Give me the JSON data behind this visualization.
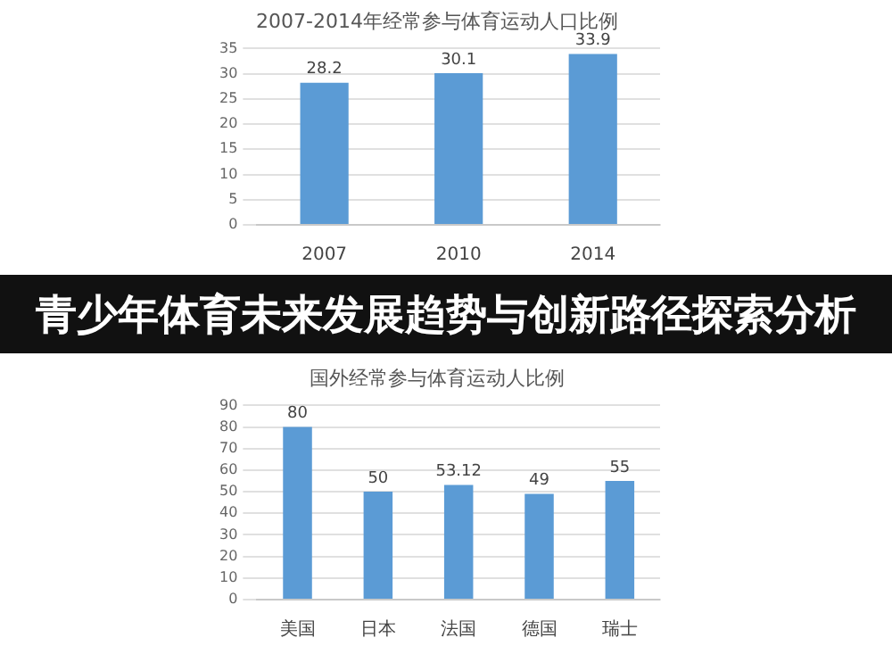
{
  "chart_data": [
    {
      "type": "bar",
      "title": "2007-2014年经常参与体育运动人口比例",
      "categories": [
        "2007",
        "2010",
        "2014"
      ],
      "values": [
        28.2,
        30.1,
        33.9
      ],
      "color": "#5b9bd5",
      "ylim": [
        0,
        35
      ],
      "yticks": [
        0,
        5,
        10,
        15,
        20,
        25,
        30,
        35
      ],
      "grid": "y",
      "data_labels": true
    },
    {
      "type": "other",
      "title": "青少年体育未来发展趋势与创新路径探索分析"
    },
    {
      "type": "bar",
      "title": "国外经常参与体育运动人比例",
      "categories": [
        "美国",
        "日本",
        "法国",
        "德国",
        "瑞士"
      ],
      "values": [
        80,
        50,
        53.12,
        49,
        55
      ],
      "color": "#5b9bd5",
      "ylim": [
        0,
        90
      ],
      "yticks": [
        0,
        10,
        20,
        30,
        40,
        50,
        60,
        70,
        80,
        90
      ],
      "grid": "y",
      "data_labels": true
    }
  ]
}
